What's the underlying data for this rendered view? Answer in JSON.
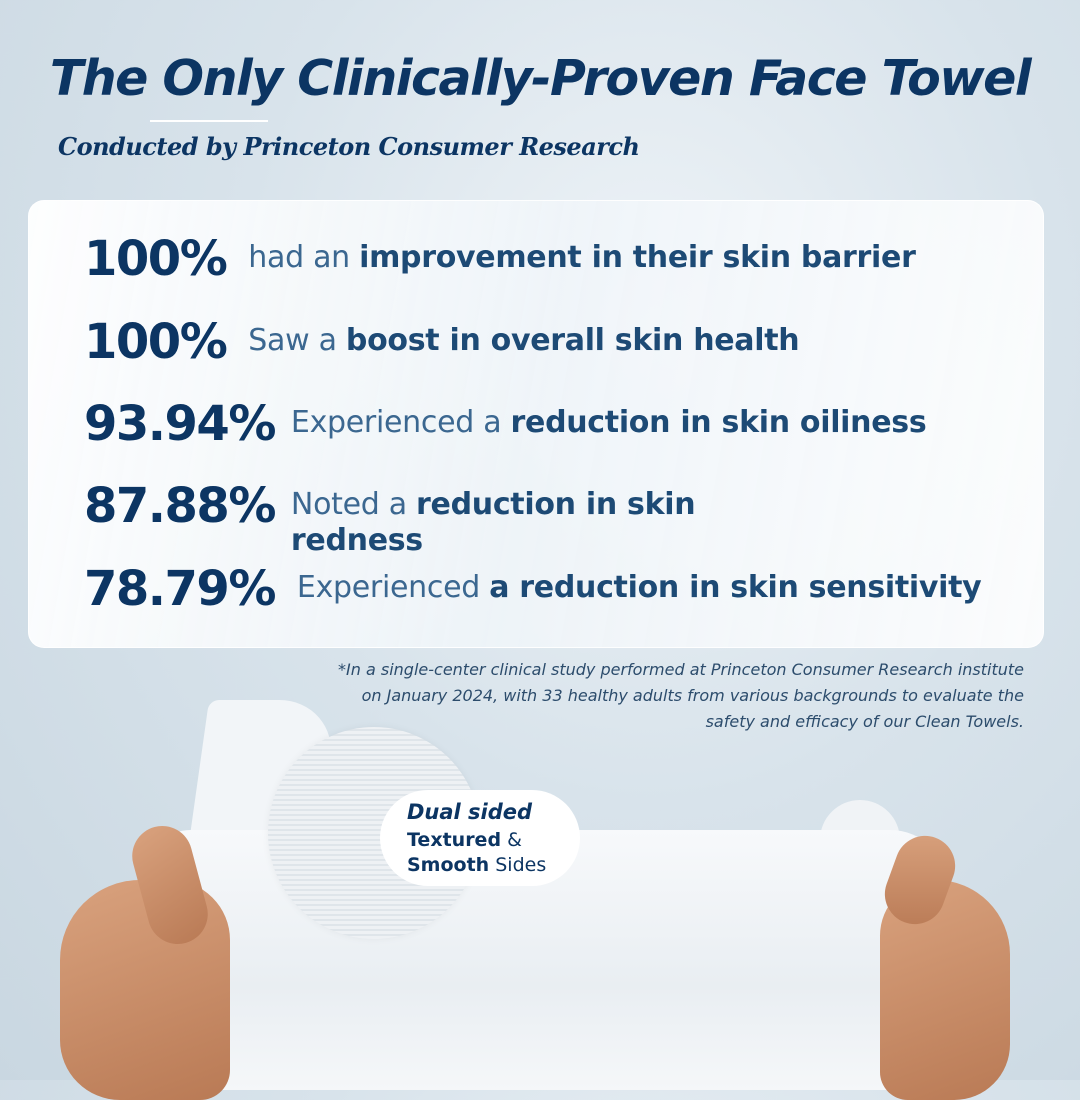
{
  "header": {
    "title": "The Only Clinically-Proven Face Towel",
    "subtitle": "Conducted by Princeton Consumer Research"
  },
  "stats": [
    {
      "value": "100%",
      "pre": "had an ",
      "bold": "improvement in their skin barrier",
      "post": ""
    },
    {
      "value": "100%",
      "pre": "Saw a ",
      "bold": "boost in overall skin health",
      "post": ""
    },
    {
      "value": "93.94%",
      "pre": "Experienced a ",
      "bold": "reduction in skin oiliness",
      "post": ""
    },
    {
      "value": "87.88%",
      "pre": "Noted a ",
      "bold": "reduction in skin redness",
      "post": ""
    },
    {
      "value": "78.79%",
      "pre": "Experienced ",
      "bold": "a reduction in skin sensitivity",
      "post": ""
    }
  ],
  "footnote": "*In a single-center clinical study performed at Princeton Consumer Research institute on January 2024, with 33 healthy adults from various backgrounds to evaluate the safety and efficacy of our Clean Towels.",
  "badge": {
    "title": "Dual sided",
    "line1_bold": "Textured",
    "line1_rest": " &",
    "line2_bold": "Smooth",
    "line2_rest": " Sides"
  },
  "colors": {
    "navy": "#0c3563",
    "text": "#3b6790",
    "background": "#cfdbe4"
  }
}
